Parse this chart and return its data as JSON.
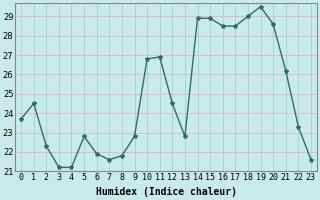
{
  "xlabel": "Humidex (Indice chaleur)",
  "x": [
    0,
    1,
    2,
    3,
    4,
    5,
    6,
    7,
    8,
    9,
    10,
    11,
    12,
    13,
    14,
    15,
    16,
    17,
    18,
    19,
    20,
    21,
    22,
    23
  ],
  "y": [
    23.7,
    24.5,
    22.3,
    21.2,
    21.2,
    22.8,
    21.9,
    21.6,
    21.8,
    22.8,
    26.8,
    26.9,
    24.5,
    22.8,
    28.9,
    28.9,
    28.5,
    28.5,
    29.0,
    29.5,
    28.6,
    26.2,
    23.3,
    21.6
  ],
  "line_color": "#2e6e60",
  "marker": "*",
  "marker_size": 3,
  "bg_color": "#c8eae8",
  "hgrid_color": "#e8b8b8",
  "vgrid_color": "#a8d4d0",
  "axis_label_fontsize": 7,
  "tick_fontsize": 6,
  "ylim": [
    21,
    29.7
  ],
  "yticks": [
    21,
    22,
    23,
    24,
    25,
    26,
    27,
    28,
    29
  ],
  "xlim": [
    -0.5,
    23.5
  ],
  "spine_color": "#888888"
}
